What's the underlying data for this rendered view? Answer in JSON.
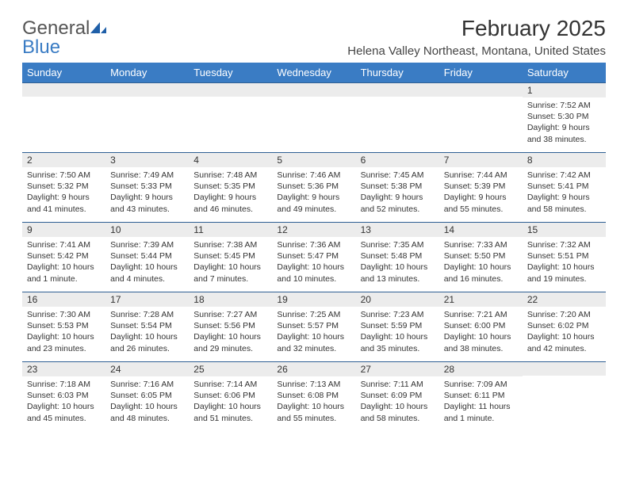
{
  "logo": {
    "text_general": "General",
    "text_blue": "Blue",
    "mark_color": "#1f5fa8"
  },
  "header": {
    "month_title": "February 2025",
    "location": "Helena Valley Northeast, Montana, United States"
  },
  "daynames": [
    "Sunday",
    "Monday",
    "Tuesday",
    "Wednesday",
    "Thursday",
    "Friday",
    "Saturday"
  ],
  "colors": {
    "header_bg": "#3a7cc4",
    "header_text": "#ffffff",
    "daynum_bg": "#ececec",
    "cell_border_top": "#2f5f93",
    "body_text": "#333333"
  },
  "weeks": [
    [
      {
        "n": "",
        "lines": []
      },
      {
        "n": "",
        "lines": []
      },
      {
        "n": "",
        "lines": []
      },
      {
        "n": "",
        "lines": []
      },
      {
        "n": "",
        "lines": []
      },
      {
        "n": "",
        "lines": []
      },
      {
        "n": "1",
        "lines": [
          "Sunrise: 7:52 AM",
          "Sunset: 5:30 PM",
          "Daylight: 9 hours and 38 minutes."
        ]
      }
    ],
    [
      {
        "n": "2",
        "lines": [
          "Sunrise: 7:50 AM",
          "Sunset: 5:32 PM",
          "Daylight: 9 hours and 41 minutes."
        ]
      },
      {
        "n": "3",
        "lines": [
          "Sunrise: 7:49 AM",
          "Sunset: 5:33 PM",
          "Daylight: 9 hours and 43 minutes."
        ]
      },
      {
        "n": "4",
        "lines": [
          "Sunrise: 7:48 AM",
          "Sunset: 5:35 PM",
          "Daylight: 9 hours and 46 minutes."
        ]
      },
      {
        "n": "5",
        "lines": [
          "Sunrise: 7:46 AM",
          "Sunset: 5:36 PM",
          "Daylight: 9 hours and 49 minutes."
        ]
      },
      {
        "n": "6",
        "lines": [
          "Sunrise: 7:45 AM",
          "Sunset: 5:38 PM",
          "Daylight: 9 hours and 52 minutes."
        ]
      },
      {
        "n": "7",
        "lines": [
          "Sunrise: 7:44 AM",
          "Sunset: 5:39 PM",
          "Daylight: 9 hours and 55 minutes."
        ]
      },
      {
        "n": "8",
        "lines": [
          "Sunrise: 7:42 AM",
          "Sunset: 5:41 PM",
          "Daylight: 9 hours and 58 minutes."
        ]
      }
    ],
    [
      {
        "n": "9",
        "lines": [
          "Sunrise: 7:41 AM",
          "Sunset: 5:42 PM",
          "Daylight: 10 hours and 1 minute."
        ]
      },
      {
        "n": "10",
        "lines": [
          "Sunrise: 7:39 AM",
          "Sunset: 5:44 PM",
          "Daylight: 10 hours and 4 minutes."
        ]
      },
      {
        "n": "11",
        "lines": [
          "Sunrise: 7:38 AM",
          "Sunset: 5:45 PM",
          "Daylight: 10 hours and 7 minutes."
        ]
      },
      {
        "n": "12",
        "lines": [
          "Sunrise: 7:36 AM",
          "Sunset: 5:47 PM",
          "Daylight: 10 hours and 10 minutes."
        ]
      },
      {
        "n": "13",
        "lines": [
          "Sunrise: 7:35 AM",
          "Sunset: 5:48 PM",
          "Daylight: 10 hours and 13 minutes."
        ]
      },
      {
        "n": "14",
        "lines": [
          "Sunrise: 7:33 AM",
          "Sunset: 5:50 PM",
          "Daylight: 10 hours and 16 minutes."
        ]
      },
      {
        "n": "15",
        "lines": [
          "Sunrise: 7:32 AM",
          "Sunset: 5:51 PM",
          "Daylight: 10 hours and 19 minutes."
        ]
      }
    ],
    [
      {
        "n": "16",
        "lines": [
          "Sunrise: 7:30 AM",
          "Sunset: 5:53 PM",
          "Daylight: 10 hours and 23 minutes."
        ]
      },
      {
        "n": "17",
        "lines": [
          "Sunrise: 7:28 AM",
          "Sunset: 5:54 PM",
          "Daylight: 10 hours and 26 minutes."
        ]
      },
      {
        "n": "18",
        "lines": [
          "Sunrise: 7:27 AM",
          "Sunset: 5:56 PM",
          "Daylight: 10 hours and 29 minutes."
        ]
      },
      {
        "n": "19",
        "lines": [
          "Sunrise: 7:25 AM",
          "Sunset: 5:57 PM",
          "Daylight: 10 hours and 32 minutes."
        ]
      },
      {
        "n": "20",
        "lines": [
          "Sunrise: 7:23 AM",
          "Sunset: 5:59 PM",
          "Daylight: 10 hours and 35 minutes."
        ]
      },
      {
        "n": "21",
        "lines": [
          "Sunrise: 7:21 AM",
          "Sunset: 6:00 PM",
          "Daylight: 10 hours and 38 minutes."
        ]
      },
      {
        "n": "22",
        "lines": [
          "Sunrise: 7:20 AM",
          "Sunset: 6:02 PM",
          "Daylight: 10 hours and 42 minutes."
        ]
      }
    ],
    [
      {
        "n": "23",
        "lines": [
          "Sunrise: 7:18 AM",
          "Sunset: 6:03 PM",
          "Daylight: 10 hours and 45 minutes."
        ]
      },
      {
        "n": "24",
        "lines": [
          "Sunrise: 7:16 AM",
          "Sunset: 6:05 PM",
          "Daylight: 10 hours and 48 minutes."
        ]
      },
      {
        "n": "25",
        "lines": [
          "Sunrise: 7:14 AM",
          "Sunset: 6:06 PM",
          "Daylight: 10 hours and 51 minutes."
        ]
      },
      {
        "n": "26",
        "lines": [
          "Sunrise: 7:13 AM",
          "Sunset: 6:08 PM",
          "Daylight: 10 hours and 55 minutes."
        ]
      },
      {
        "n": "27",
        "lines": [
          "Sunrise: 7:11 AM",
          "Sunset: 6:09 PM",
          "Daylight: 10 hours and 58 minutes."
        ]
      },
      {
        "n": "28",
        "lines": [
          "Sunrise: 7:09 AM",
          "Sunset: 6:11 PM",
          "Daylight: 11 hours and 1 minute."
        ]
      },
      {
        "n": "",
        "lines": []
      }
    ]
  ]
}
